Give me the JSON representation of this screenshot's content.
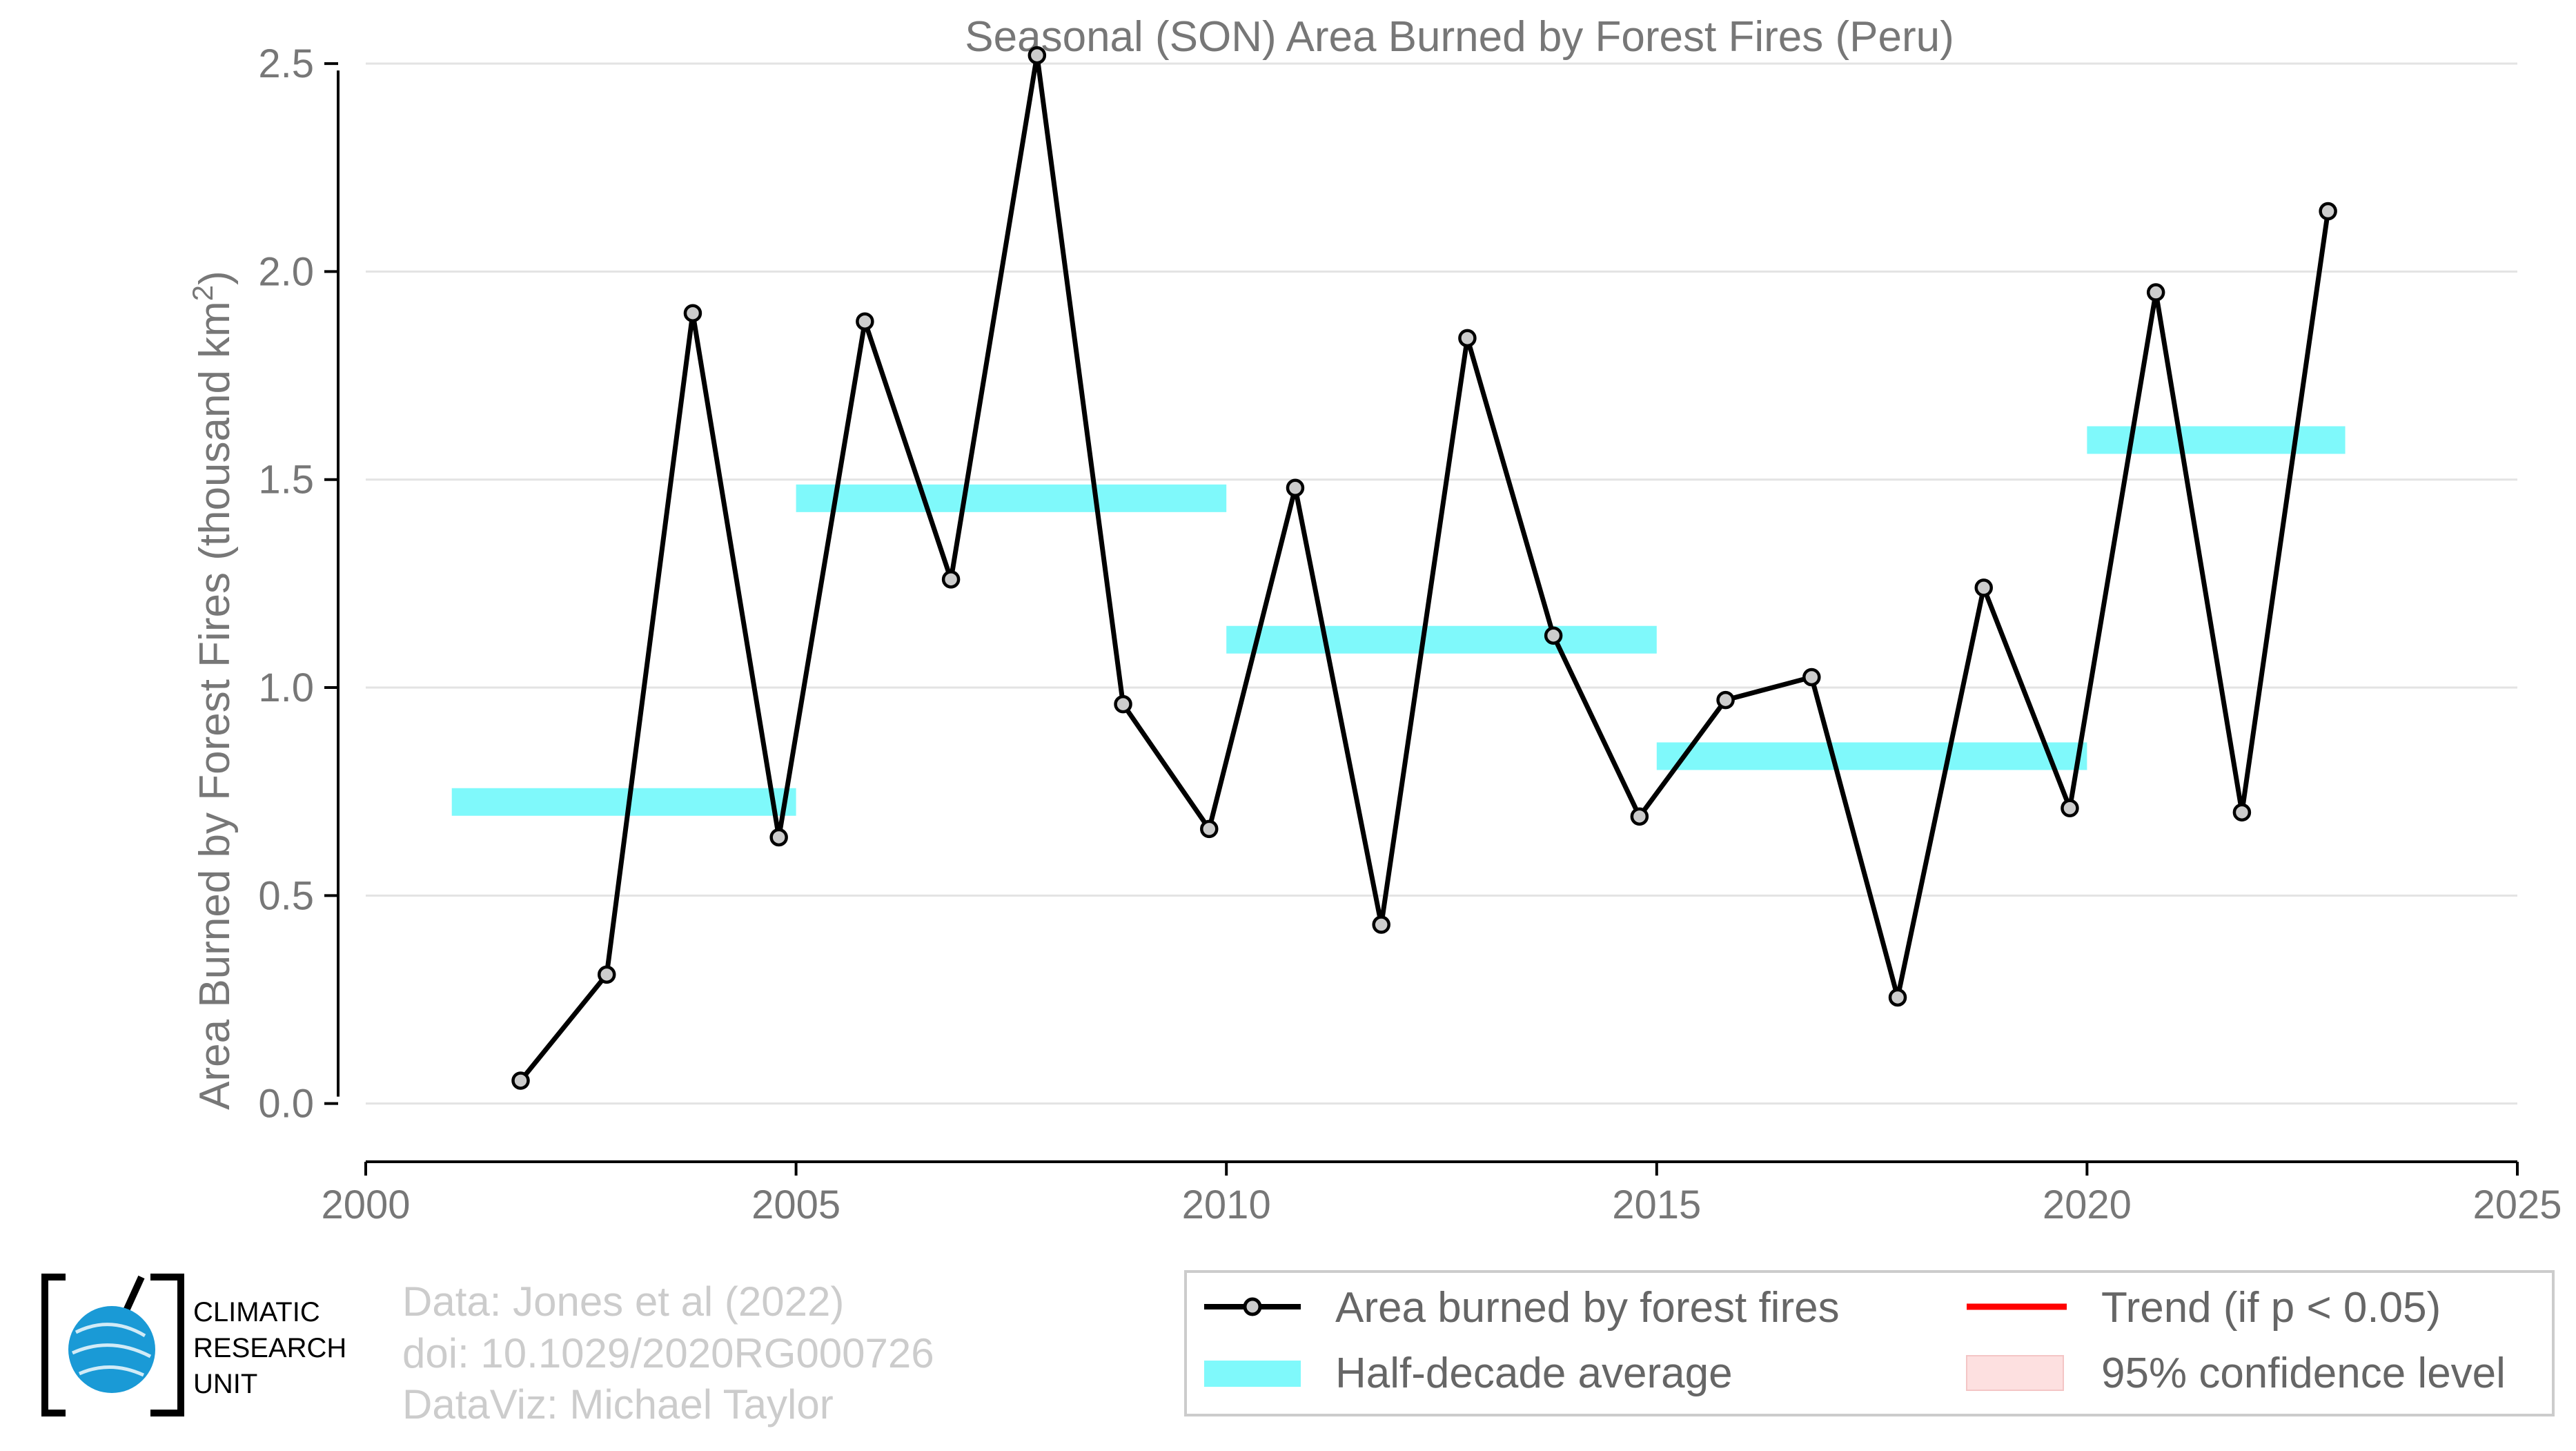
{
  "chart_data": {
    "type": "line",
    "title": "Seasonal (SON) Area Burned by Forest Fires (Peru)",
    "xlabel": "",
    "ylabel": "Area Burned by Forest Fires (thousand km",
    "ylabel_sup": "2",
    "ylabel_close": ")",
    "xlim": [
      2000,
      2025
    ],
    "ylim": [
      -0.14,
      2.55
    ],
    "xticks": [
      2000,
      2005,
      2010,
      2015,
      2020,
      2025
    ],
    "yticks": [
      0.0,
      0.5,
      1.0,
      1.5,
      2.0,
      2.5
    ],
    "ytick_labels": [
      "0.0",
      "0.5",
      "1.0",
      "1.5",
      "2.0",
      "2.5"
    ],
    "grid": "horizontal",
    "legend_position": "bottom-right",
    "series": [
      {
        "name": "Area burned by forest fires",
        "color": "#000000",
        "marker_fill": "#cccccc",
        "x": [
          2001.8,
          2002.8,
          2003.8,
          2004.8,
          2005.8,
          2006.8,
          2007.8,
          2008.8,
          2009.8,
          2010.8,
          2011.8,
          2012.8,
          2013.8,
          2014.8,
          2015.8,
          2016.8,
          2017.8,
          2018.8,
          2019.8,
          2020.8,
          2021.8,
          2022.8
        ],
        "y": [
          0.055,
          0.31,
          1.9,
          0.64,
          1.88,
          1.26,
          2.52,
          0.96,
          0.66,
          1.48,
          0.43,
          1.84,
          1.125,
          0.69,
          0.97,
          1.025,
          0.255,
          1.24,
          0.71,
          1.95,
          0.7,
          2.145
        ]
      }
    ],
    "half_decade_average": {
      "name": "Half-decade average",
      "color": "#7ff9fb",
      "segments": [
        {
          "x_start": 2001,
          "x_end": 2005,
          "y": 0.725
        },
        {
          "x_start": 2005,
          "x_end": 2010,
          "y": 1.455
        },
        {
          "x_start": 2010,
          "x_end": 2015,
          "y": 1.115
        },
        {
          "x_start": 2015,
          "x_end": 2020,
          "y": 0.835
        },
        {
          "x_start": 2020,
          "x_end": 2023,
          "y": 1.595
        }
      ]
    },
    "legend": [
      {
        "key": "series",
        "label": "Area burned by forest fires",
        "color": "#000000"
      },
      {
        "key": "average",
        "label": "Half-decade average",
        "color": "#7ff9fb"
      },
      {
        "key": "trend",
        "label": "Trend (if p < 0.05)",
        "color": "#ff0000"
      },
      {
        "key": "ci",
        "label": "95% confidence level",
        "color": "#fde0e0"
      }
    ]
  },
  "credits": {
    "line1": "Data: Jones et al (2022)",
    "line2": "doi: 10.1029/2020RG000726",
    "line3": "DataViz: Michael Taylor"
  },
  "logo": {
    "line1": "CLIMATIC",
    "line2": "RESEARCH",
    "line3": "UNIT",
    "globe_color": "#1a9ad6"
  }
}
